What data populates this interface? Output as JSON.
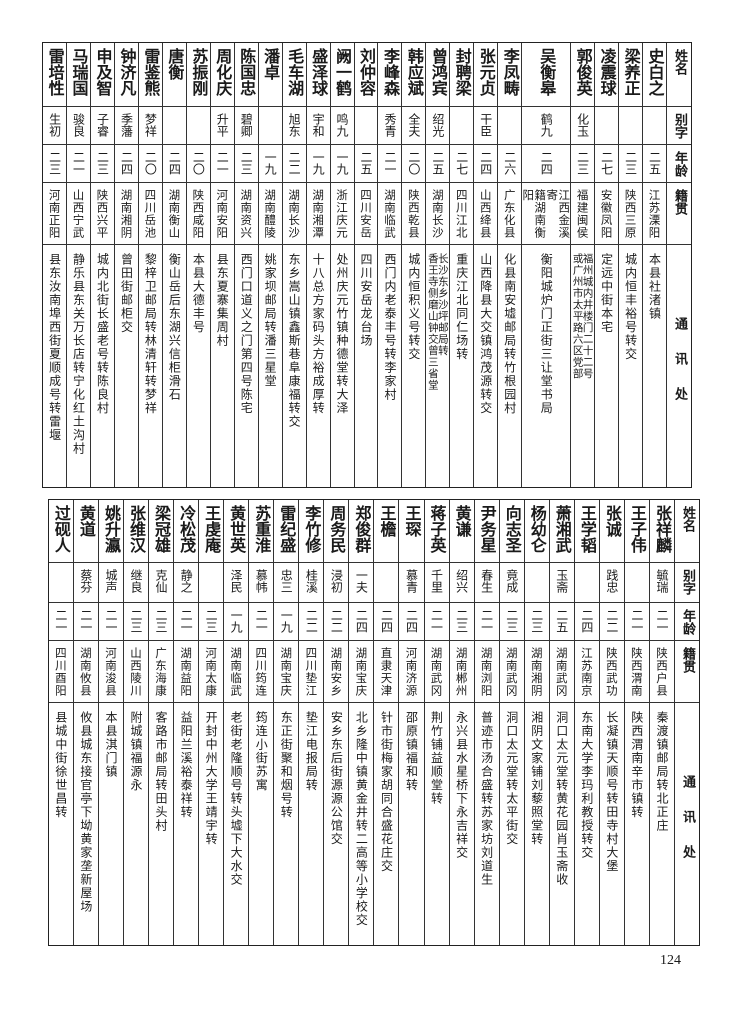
{
  "headers": {
    "name": "姓名",
    "alias": "别字",
    "age": "年龄",
    "origin": "籍贯",
    "address": "通讯处"
  },
  "tables": [
    {
      "rows": [
        {
          "name": "史白之",
          "alias": "",
          "age": "二五",
          "origin": "江苏溧阳",
          "address": [
            "本县社渚镇"
          ]
        },
        {
          "name": "梁养正",
          "alias": "",
          "age": "二三",
          "origin": "陕西三原",
          "address": [
            "城内恒丰裕号转交"
          ]
        },
        {
          "name": "凌震球",
          "alias": "",
          "age": "二七",
          "origin": "安徽凤阳",
          "address": [
            "定远中街本宅"
          ]
        },
        {
          "name": "郭俊英",
          "alias": "化玉",
          "age": "二三",
          "origin": "福建闽侯",
          "address": [
            "福州城内井楼门二十二号",
            "或广州市太平路六区党部"
          ]
        },
        {
          "name": "吴衡皋",
          "alias": "鹤九",
          "age": "二四",
          "origin": [
            "江西金溪寄",
            "籍湖南衡阳"
          ],
          "address": [
            "衡阳城炉门正街三让堂书局"
          ]
        },
        {
          "name": "李凤畴",
          "alias": "",
          "age": "二六",
          "origin": "广东化县",
          "address": [
            "化县南安墟邮局转竹根园村"
          ]
        },
        {
          "name": "张元贞",
          "alias": "干臣",
          "age": "二四",
          "origin": "山西绛县",
          "address": [
            "山西降县大交镇鸿茂源转交"
          ]
        },
        {
          "name": "封聘梁",
          "alias": "",
          "age": "二七",
          "origin": "四川江北",
          "address": [
            "重庆江北同仁场转"
          ]
        },
        {
          "name": "曾鸿宾",
          "alias": "绍光",
          "age": "二五",
          "origin": "湖南长沙",
          "address": [
            "长沙东乡沙坪邮局转",
            "香王寺侧磨山钟交曾三省堂"
          ]
        },
        {
          "name": "韩应斌",
          "alias": "全夫",
          "age": "二〇",
          "origin": "陕西乾县",
          "address": [
            "城内恒积义号转交"
          ]
        },
        {
          "name": "李峰森",
          "alias": "秀青",
          "age": "二一",
          "origin": "湖南临武",
          "address": [
            "西门内老泰丰号转李家村"
          ]
        },
        {
          "name": "刘仲容",
          "alias": "",
          "age": "二五",
          "origin": "四川安岳",
          "address": [
            "四川安岳龙台场"
          ]
        },
        {
          "name": "阙一鹤",
          "alias": "鸣九",
          "age": "一九",
          "origin": "浙江庆元",
          "address": [
            "处州庆元竹镇种德堂转大泽"
          ]
        },
        {
          "name": "盛泽球",
          "alias": "宇和",
          "age": "一九",
          "origin": "湖南湘潭",
          "address": [
            "十八总方家码头方裕成厚转"
          ]
        },
        {
          "name": "毛车湖",
          "alias": "旭东",
          "age": "二二",
          "origin": "湖南长沙",
          "address": [
            "东乡嵩山镇鑫斯巷阜康福转交"
          ]
        },
        {
          "name": "潘卓",
          "alias": "",
          "age": "一九",
          "origin": "湖南醴陵",
          "address": [
            "姚家坝邮局转潘三星堂"
          ]
        },
        {
          "name": "陈国忠",
          "alias": "碧卿",
          "age": "二三",
          "origin": "湖南资兴",
          "address": [
            "西门口道义之门第四号陈宅"
          ]
        },
        {
          "name": "周化庆",
          "alias": "升平",
          "age": "二一",
          "origin": "河南安阳",
          "address": [
            "县东夏寨集周村"
          ]
        },
        {
          "name": "苏振刚",
          "alias": "",
          "age": "二〇",
          "origin": "陕西咸阳",
          "address": [
            "本县大德丰号"
          ]
        },
        {
          "name": "唐衡",
          "alias": "",
          "age": "二四",
          "origin": "湖南衡山",
          "address": [
            "衡山岳后东湖兴信柜滑石"
          ]
        },
        {
          "name": "雷鉴熊",
          "alias": "梦祥",
          "age": "二〇",
          "origin": "四川岳池",
          "address": [
            "黎梓卫邮局转林清轩转梦祥"
          ]
        },
        {
          "name": "钟济凡",
          "alias": "季藩",
          "age": "二四",
          "origin": "湖南湘阴",
          "address": [
            "曾田街邮柜交"
          ]
        },
        {
          "name": "申及智",
          "alias": "子睿",
          "age": "二三",
          "origin": "陕西兴平",
          "address": [
            "城内北街长盛老号转陈良村"
          ]
        },
        {
          "name": "马瑞国",
          "alias": "骏良",
          "age": "二一",
          "origin": "山西宁武",
          "address": [
            "静乐县东关万长店转宁化红土沟村"
          ]
        },
        {
          "name": "雷培性",
          "alias": "生初",
          "age": "二三",
          "origin": "河南正阳",
          "address": [
            "县东汝南埠西街夏顺成号转雷堰"
          ]
        }
      ]
    },
    {
      "rows": [
        {
          "name": "张祥麟",
          "alias": "毓瑞",
          "age": "二一",
          "origin": "陕西户县",
          "address": [
            "秦渡镇邮局转北正庄"
          ]
        },
        {
          "name": "王子伟",
          "alias": "",
          "age": "二一",
          "origin": "陕西渭南",
          "address": [
            "陕西渭南辛市镇转"
          ]
        },
        {
          "name": "张诚",
          "alias": "践忠",
          "age": "二二",
          "origin": "陕西武功",
          "address": [
            "长凝镇天顺号转田寺村大堡"
          ]
        },
        {
          "name": "王学韬",
          "alias": "",
          "age": "二四",
          "origin": "江苏南京",
          "address": [
            "东南大学李玛利教授转交"
          ]
        },
        {
          "name": "萧湘武",
          "alias": "玉斋",
          "age": "二五",
          "origin": "湖南武冈",
          "address": [
            "洞口太元堂转黄花园肖玉斋收"
          ]
        },
        {
          "name": "杨幼仑",
          "alias": "",
          "age": "二三",
          "origin": "湖南湘阴",
          "address": [
            "湘阴文家铺刘藜照堂转"
          ]
        },
        {
          "name": "向志圣",
          "alias": "竟成",
          "age": "二三",
          "origin": "湖南武冈",
          "address": [
            "洞口太元堂转太平街交"
          ]
        },
        {
          "name": "尹务星",
          "alias": "春生",
          "age": "二一",
          "origin": "湖南浏阳",
          "address": [
            "普迹市汤合盛转苏家坊刘道生"
          ]
        },
        {
          "name": "黄谦",
          "alias": "绍兴",
          "age": "二三",
          "origin": "湖南郴州",
          "address": [
            "永兴县水星桥下永吉祥交"
          ]
        },
        {
          "name": "蒋子英",
          "alias": "千里",
          "age": "二一",
          "origin": "湖南武冈",
          "address": [
            "荆竹铺益顺堂转"
          ]
        },
        {
          "name": "王琛",
          "alias": "慕青",
          "age": "二四",
          "origin": "河南济源",
          "address": [
            "邵原镇福和转"
          ]
        },
        {
          "name": "王檐",
          "alias": "",
          "age": "二四",
          "origin": "直隶天津",
          "address": [
            "针市街梅家胡同合盛花庄交"
          ]
        },
        {
          "name": "郑俊群",
          "alias": "一夫",
          "age": "二四",
          "origin": "湖南宝庆",
          "address": [
            "北乡隆中镇黄金井转二高等小学校交"
          ]
        },
        {
          "name": "周务民",
          "alias": "浸初",
          "age": "二二",
          "origin": "湖南安乡",
          "address": [
            "安乡东后街源源公馆交"
          ]
        },
        {
          "name": "李竹修",
          "alias": "桂溪",
          "age": "二二",
          "origin": "四川垫江",
          "address": [
            "垫江电报局转"
          ]
        },
        {
          "name": "雷纪盛",
          "alias": "忠三",
          "age": "一九",
          "origin": "湖南宝庆",
          "address": [
            "东正街聚和烟号转"
          ]
        },
        {
          "name": "苏重淮",
          "alias": "慕帏",
          "age": "二一",
          "origin": "四川筠连",
          "address": [
            "筠连小街苏寓"
          ]
        },
        {
          "name": "黄世英",
          "alias": "泽民",
          "age": "一九",
          "origin": "湖南临武",
          "address": [
            "老街老隆顺号转头墟下大水交"
          ]
        },
        {
          "name": "王虔庵",
          "alias": "",
          "age": "二三",
          "origin": "河南太康",
          "address": [
            "开封中州大学王靖宇转"
          ]
        },
        {
          "name": "冷松茂",
          "alias": "静之",
          "age": "二一",
          "origin": "湖南益阳",
          "address": [
            "益阳兰溪裕泰祥转"
          ]
        },
        {
          "name": "梁冠雄",
          "alias": "克仙",
          "age": "二三",
          "origin": "广东海康",
          "address": [
            "客路市邮局转田头村"
          ]
        },
        {
          "name": "张维汉",
          "alias": "继良",
          "age": "二三",
          "origin": "山西陵川",
          "address": [
            "附城镇福源永"
          ]
        },
        {
          "name": "姚升瀛",
          "alias": "城声",
          "age": "二一",
          "origin": "河南浚县",
          "address": [
            "本县淇门镇"
          ]
        },
        {
          "name": "黄道",
          "alias": "蔡芬",
          "age": "二一",
          "origin": "湖南攸县",
          "address": [
            "攸县城东接官亭下坳黄家垄新屋场"
          ]
        },
        {
          "name": "过砚人",
          "alias": "",
          "age": "二一",
          "origin": "四川酉阳",
          "address": [
            "县城中街徐世昌转"
          ]
        }
      ]
    }
  ],
  "page_number": "124"
}
